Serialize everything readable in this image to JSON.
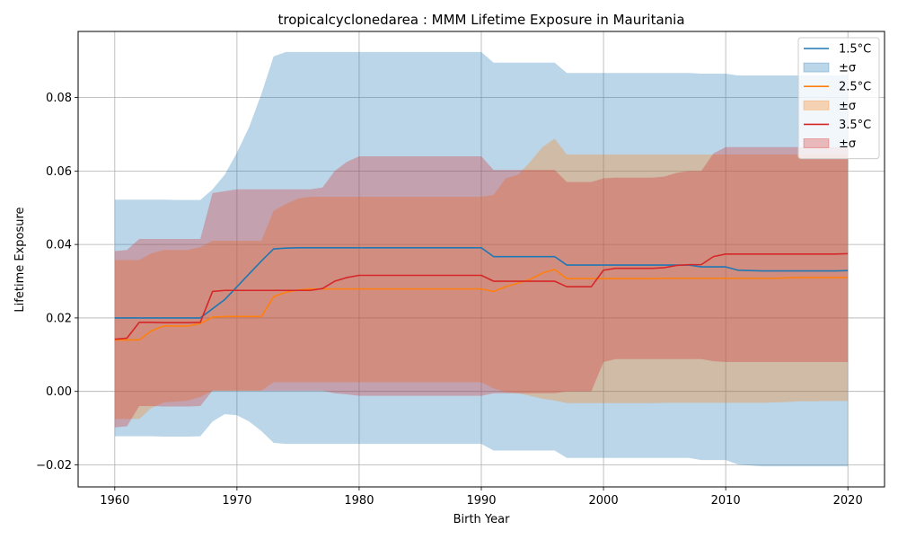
{
  "chart_data": {
    "type": "line",
    "title": "tropicalcyclonedarea : MMM Lifetime Exposure in Mauritania",
    "xlabel": "Birth Year",
    "ylabel": "Lifetime Exposure",
    "xlim": [
      1957,
      2023
    ],
    "ylim": [
      -0.026,
      0.098
    ],
    "xticks": [
      1960,
      1970,
      1980,
      1990,
      2000,
      2010,
      2020
    ],
    "xtick_labels": [
      "1960",
      "1970",
      "1980",
      "1990",
      "2000",
      "2010",
      "2020"
    ],
    "yticks": [
      -0.02,
      0.0,
      0.02,
      0.04,
      0.06,
      0.08
    ],
    "ytick_labels": [
      "−0.02",
      "0.00",
      "0.02",
      "0.04",
      "0.06",
      "0.08"
    ],
    "grid": true,
    "legend_placement": "top-right",
    "x": [
      1960,
      1961,
      1962,
      1963,
      1964,
      1965,
      1966,
      1967,
      1968,
      1969,
      1970,
      1971,
      1972,
      1973,
      1974,
      1975,
      1976,
      1977,
      1978,
      1979,
      1980,
      1981,
      1982,
      1983,
      1984,
      1985,
      1986,
      1987,
      1988,
      1989,
      1990,
      1991,
      1992,
      1993,
      1994,
      1995,
      1996,
      1997,
      1998,
      1999,
      2000,
      2001,
      2002,
      2003,
      2004,
      2005,
      2006,
      2007,
      2008,
      2009,
      2010,
      2011,
      2012,
      2013,
      2014,
      2015,
      2016,
      2017,
      2018,
      2019,
      2020
    ],
    "series": [
      {
        "name": "1.5°C",
        "band_label": "±σ",
        "color": "#1f77b4",
        "band_color": "#1f77b4",
        "values": [
          0.02,
          0.02,
          0.02,
          0.02,
          0.02,
          0.02,
          0.02,
          0.02,
          0.0225,
          0.025,
          0.0285,
          0.032,
          0.0355,
          0.0388,
          0.039,
          0.0391,
          0.0391,
          0.0391,
          0.0391,
          0.0391,
          0.0391,
          0.0391,
          0.0391,
          0.0391,
          0.0391,
          0.0391,
          0.0391,
          0.0391,
          0.0391,
          0.0391,
          0.0391,
          0.0367,
          0.0367,
          0.0367,
          0.0367,
          0.0367,
          0.0367,
          0.0344,
          0.0344,
          0.0344,
          0.0344,
          0.0344,
          0.0344,
          0.0344,
          0.0344,
          0.0344,
          0.0344,
          0.0344,
          0.0339,
          0.0339,
          0.0339,
          0.033,
          0.0329,
          0.0328,
          0.0328,
          0.0328,
          0.0328,
          0.0328,
          0.0328,
          0.0328,
          0.0329
        ],
        "upper": [
          0.0522,
          0.0522,
          0.0522,
          0.0522,
          0.0522,
          0.0521,
          0.0521,
          0.0521,
          0.055,
          0.059,
          0.065,
          0.072,
          0.081,
          0.0912,
          0.0924,
          0.0924,
          0.0924,
          0.0924,
          0.0924,
          0.0924,
          0.0924,
          0.0924,
          0.0924,
          0.0924,
          0.0924,
          0.0924,
          0.0924,
          0.0924,
          0.0924,
          0.0924,
          0.0924,
          0.0895,
          0.0895,
          0.0895,
          0.0895,
          0.0895,
          0.0895,
          0.0867,
          0.0867,
          0.0867,
          0.0867,
          0.0867,
          0.0867,
          0.0867,
          0.0867,
          0.0867,
          0.0867,
          0.0867,
          0.0865,
          0.0865,
          0.0865,
          0.086,
          0.086,
          0.086,
          0.086,
          0.086,
          0.086,
          0.086,
          0.086,
          0.086,
          0.0862
        ],
        "lower": [
          -0.0122,
          -0.0122,
          -0.0122,
          -0.0122,
          -0.0123,
          -0.0123,
          -0.0123,
          -0.0122,
          -0.0082,
          -0.0062,
          -0.0065,
          -0.0082,
          -0.0108,
          -0.014,
          -0.0143,
          -0.0143,
          -0.0143,
          -0.0143,
          -0.0143,
          -0.0143,
          -0.0143,
          -0.0143,
          -0.0143,
          -0.0143,
          -0.0143,
          -0.0143,
          -0.0143,
          -0.0143,
          -0.0143,
          -0.0143,
          -0.0143,
          -0.0161,
          -0.0161,
          -0.0161,
          -0.0161,
          -0.0161,
          -0.0161,
          -0.0181,
          -0.0181,
          -0.0181,
          -0.0181,
          -0.0181,
          -0.0181,
          -0.0181,
          -0.0181,
          -0.0181,
          -0.0181,
          -0.0181,
          -0.0187,
          -0.0187,
          -0.0187,
          -0.0199,
          -0.0202,
          -0.0204,
          -0.0204,
          -0.0204,
          -0.0204,
          -0.0204,
          -0.0204,
          -0.0204,
          -0.0204
        ]
      },
      {
        "name": "2.5°C",
        "band_label": "±σ",
        "color": "#ff7f0e",
        "band_color": "#ff7f0e",
        "values": [
          0.014,
          0.014,
          0.014,
          0.0165,
          0.0178,
          0.0178,
          0.0178,
          0.0185,
          0.0202,
          0.0204,
          0.0204,
          0.0204,
          0.0204,
          0.0258,
          0.027,
          0.0276,
          0.0279,
          0.0279,
          0.0279,
          0.0279,
          0.0279,
          0.0279,
          0.0279,
          0.0279,
          0.0279,
          0.0279,
          0.0279,
          0.0279,
          0.0279,
          0.0279,
          0.0279,
          0.0272,
          0.0285,
          0.0295,
          0.0305,
          0.0322,
          0.0332,
          0.0307,
          0.0307,
          0.0307,
          0.0307,
          0.0307,
          0.0307,
          0.0307,
          0.0307,
          0.0308,
          0.0308,
          0.0308,
          0.0308,
          0.0308,
          0.0308,
          0.0308,
          0.0308,
          0.0308,
          0.0308,
          0.0309,
          0.031,
          0.031,
          0.031,
          0.031,
          0.031
        ],
        "upper": [
          0.0358,
          0.0358,
          0.0358,
          0.0376,
          0.0385,
          0.0385,
          0.0385,
          0.0393,
          0.041,
          0.041,
          0.041,
          0.041,
          0.041,
          0.0492,
          0.051,
          0.0525,
          0.053,
          0.053,
          0.053,
          0.053,
          0.053,
          0.053,
          0.053,
          0.053,
          0.053,
          0.053,
          0.053,
          0.053,
          0.053,
          0.053,
          0.053,
          0.0535,
          0.058,
          0.059,
          0.0625,
          0.0665,
          0.0688,
          0.0645,
          0.0645,
          0.0645,
          0.0645,
          0.0645,
          0.0645,
          0.0645,
          0.0645,
          0.0645,
          0.0645,
          0.0645,
          0.0645,
          0.0645,
          0.0645,
          0.0645,
          0.0645,
          0.0645,
          0.0645,
          0.0645,
          0.0645,
          0.0645,
          0.0645,
          0.0645,
          0.0645
        ],
        "lower": [
          -0.0075,
          -0.0075,
          -0.0075,
          -0.0045,
          -0.003,
          -0.0028,
          -0.0025,
          -0.0015,
          0.0002,
          0.0002,
          0.0002,
          0.0002,
          0.0002,
          0.0025,
          0.0025,
          0.0025,
          0.0025,
          0.0025,
          0.0025,
          0.0025,
          0.0025,
          0.0025,
          0.0025,
          0.0025,
          0.0025,
          0.0025,
          0.0025,
          0.0025,
          0.0025,
          0.0025,
          0.0025,
          0.0008,
          -0.0002,
          -0.0005,
          -0.0012,
          -0.002,
          -0.0025,
          -0.0032,
          -0.0032,
          -0.0032,
          -0.0032,
          -0.0032,
          -0.0032,
          -0.0032,
          -0.0032,
          -0.0031,
          -0.0031,
          -0.0031,
          -0.0031,
          -0.0031,
          -0.0031,
          -0.0031,
          -0.0031,
          -0.0031,
          -0.003,
          -0.0029,
          -0.0027,
          -0.0027,
          -0.0026,
          -0.0026,
          -0.0026
        ]
      },
      {
        "name": "3.5°C",
        "band_label": "±σ",
        "color": "#d62728",
        "band_color": "#d62728",
        "values": [
          0.0142,
          0.0145,
          0.0188,
          0.0188,
          0.0187,
          0.0187,
          0.0187,
          0.0188,
          0.0272,
          0.0275,
          0.0275,
          0.0275,
          0.0275,
          0.0275,
          0.0275,
          0.0275,
          0.0275,
          0.028,
          0.03,
          0.031,
          0.0316,
          0.0316,
          0.0316,
          0.0316,
          0.0316,
          0.0316,
          0.0316,
          0.0316,
          0.0316,
          0.0316,
          0.0316,
          0.03,
          0.03,
          0.03,
          0.03,
          0.03,
          0.03,
          0.0285,
          0.0285,
          0.0285,
          0.033,
          0.0335,
          0.0335,
          0.0335,
          0.0335,
          0.0337,
          0.0343,
          0.0345,
          0.0345,
          0.0367,
          0.0374,
          0.0374,
          0.0374,
          0.0374,
          0.0374,
          0.0374,
          0.0374,
          0.0374,
          0.0374,
          0.0374,
          0.0375
        ],
        "upper": [
          0.0382,
          0.0385,
          0.0415,
          0.0415,
          0.0415,
          0.0415,
          0.0415,
          0.0415,
          0.054,
          0.0545,
          0.055,
          0.055,
          0.055,
          0.055,
          0.055,
          0.055,
          0.055,
          0.0555,
          0.06,
          0.0625,
          0.064,
          0.064,
          0.064,
          0.064,
          0.064,
          0.064,
          0.064,
          0.064,
          0.064,
          0.064,
          0.064,
          0.0603,
          0.0603,
          0.0603,
          0.0603,
          0.0603,
          0.0603,
          0.057,
          0.057,
          0.057,
          0.058,
          0.0582,
          0.0582,
          0.0582,
          0.0582,
          0.0585,
          0.0595,
          0.06,
          0.06,
          0.0648,
          0.0665,
          0.0665,
          0.0665,
          0.0665,
          0.0665,
          0.0665,
          0.0665,
          0.0665,
          0.0665,
          0.0665,
          0.0665
        ],
        "lower": [
          -0.0098,
          -0.0095,
          -0.004,
          -0.004,
          -0.0041,
          -0.0041,
          -0.0041,
          -0.004,
          0.0002,
          0.0002,
          0.0002,
          0.0002,
          0.0002,
          0.0002,
          0.0002,
          0.0002,
          0.0002,
          0.0002,
          -0.0005,
          -0.0008,
          -0.0012,
          -0.0012,
          -0.0012,
          -0.0012,
          -0.0012,
          -0.0012,
          -0.0012,
          -0.0012,
          -0.0012,
          -0.0012,
          -0.0012,
          -0.0005,
          -0.0005,
          -0.0005,
          -0.0005,
          -0.0005,
          -0.0005,
          0.0,
          0.0,
          0.0,
          0.008,
          0.0088,
          0.0088,
          0.0088,
          0.0088,
          0.0088,
          0.0088,
          0.0088,
          0.0088,
          0.0082,
          0.008,
          0.008,
          0.008,
          0.008,
          0.008,
          0.008,
          0.008,
          0.008,
          0.008,
          0.008,
          0.008
        ]
      }
    ]
  }
}
